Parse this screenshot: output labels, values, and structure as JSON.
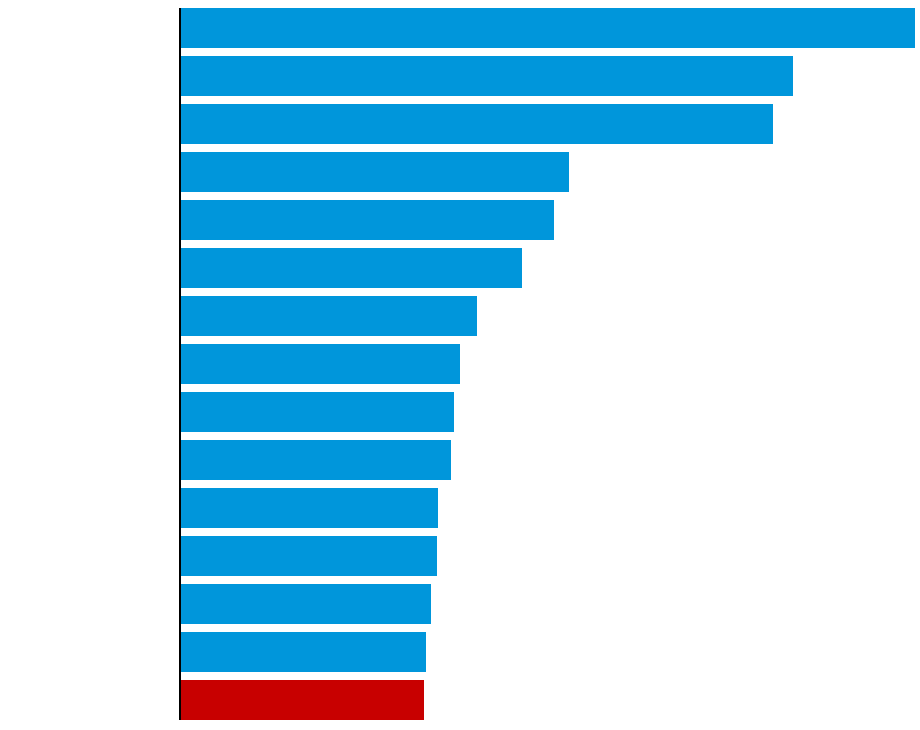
{
  "chart_data": {
    "type": "barh",
    "categories": [
      null,
      null,
      null,
      null,
      null,
      null,
      null,
      null,
      null,
      null,
      null,
      null,
      null,
      null,
      null
    ],
    "values": [
      734,
      612,
      592,
      388,
      373,
      341,
      296,
      279,
      273,
      270,
      257,
      256,
      250,
      245,
      243
    ],
    "colors": [
      "#0096db",
      "#0096db",
      "#0096db",
      "#0096db",
      "#0096db",
      "#0096db",
      "#0096db",
      "#0096db",
      "#0096db",
      "#0096db",
      "#0096db",
      "#0096db",
      "#0096db",
      "#0096db",
      "#c80000"
    ],
    "xlim": [
      0,
      734
    ]
  }
}
